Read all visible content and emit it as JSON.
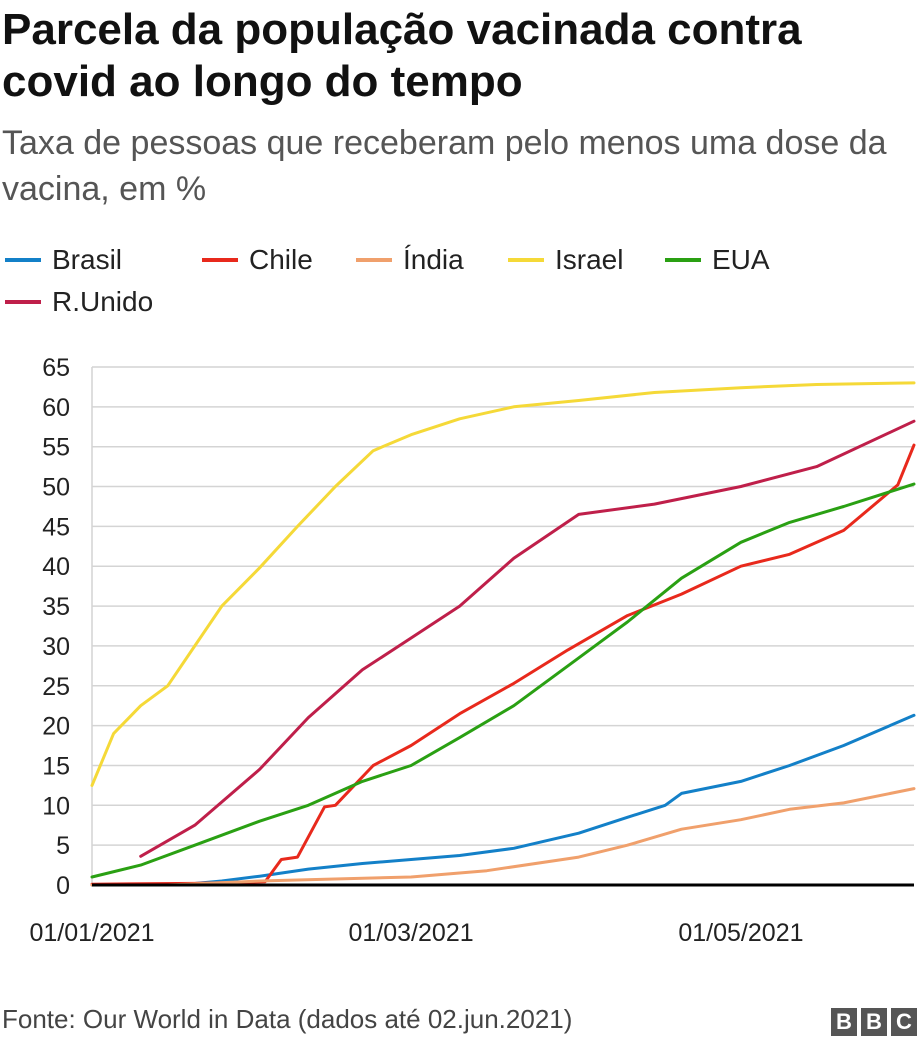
{
  "title": "Parcela da população vacinada contra covid ao longo do tempo",
  "subtitle": "Taxa de pessoas que receberam pelo menos uma dose da vacina, em %",
  "source": "Fonte: Our World in Data (dados até 02.jun.2021)",
  "logo": [
    "B",
    "B",
    "C"
  ],
  "chart_data": {
    "type": "line",
    "x_type": "date",
    "xlim": [
      "2021-01-01",
      "2021-06-02"
    ],
    "x_ticks": [
      "2021-01-01",
      "2021-03-01",
      "2021-05-01"
    ],
    "x_tick_labels": [
      "01/01/2021",
      "01/03/2021",
      "01/05/2021"
    ],
    "ylim": [
      0,
      65
    ],
    "y_ticks": [
      0,
      5,
      10,
      15,
      20,
      25,
      30,
      35,
      40,
      45,
      50,
      55,
      60,
      65
    ],
    "grid": true,
    "legend_position": "top",
    "series": [
      {
        "name": "Brasil",
        "color": "#1380c8",
        "points": [
          [
            "2021-01-01",
            0
          ],
          [
            "2021-01-17",
            0
          ],
          [
            "2021-01-25",
            0.5
          ],
          [
            "2021-02-01",
            1.1
          ],
          [
            "2021-02-10",
            2.0
          ],
          [
            "2021-02-20",
            2.7
          ],
          [
            "2021-03-01",
            3.2
          ],
          [
            "2021-03-10",
            3.7
          ],
          [
            "2021-03-20",
            4.6
          ],
          [
            "2021-04-01",
            6.5
          ],
          [
            "2021-04-10",
            8.5
          ],
          [
            "2021-04-17",
            10.0
          ],
          [
            "2021-04-20",
            11.5
          ],
          [
            "2021-05-01",
            13.0
          ],
          [
            "2021-05-10",
            15.0
          ],
          [
            "2021-05-20",
            17.5
          ],
          [
            "2021-06-02",
            21.3
          ]
        ]
      },
      {
        "name": "Chile",
        "color": "#e8291c",
        "points": [
          [
            "2021-01-01",
            0.1
          ],
          [
            "2021-01-20",
            0.2
          ],
          [
            "2021-02-02",
            0.4
          ],
          [
            "2021-02-05",
            3.2
          ],
          [
            "2021-02-08",
            3.5
          ],
          [
            "2021-02-13",
            9.8
          ],
          [
            "2021-02-15",
            10.0
          ],
          [
            "2021-02-22",
            15.0
          ],
          [
            "2021-03-01",
            17.5
          ],
          [
            "2021-03-10",
            21.5
          ],
          [
            "2021-03-20",
            25.3
          ],
          [
            "2021-03-30",
            29.5
          ],
          [
            "2021-04-10",
            33.8
          ],
          [
            "2021-04-20",
            36.5
          ],
          [
            "2021-05-01",
            40.0
          ],
          [
            "2021-05-10",
            41.5
          ],
          [
            "2021-05-20",
            44.5
          ],
          [
            "2021-05-30",
            50.2
          ],
          [
            "2021-06-02",
            55.2
          ]
        ]
      },
      {
        "name": "Índia",
        "color": "#f0a06c",
        "points": [
          [
            "2021-01-01",
            0
          ],
          [
            "2021-01-15",
            0
          ],
          [
            "2021-02-01",
            0.5
          ],
          [
            "2021-03-01",
            1.0
          ],
          [
            "2021-03-15",
            1.8
          ],
          [
            "2021-04-01",
            3.5
          ],
          [
            "2021-04-10",
            5.0
          ],
          [
            "2021-04-20",
            7.0
          ],
          [
            "2021-05-01",
            8.2
          ],
          [
            "2021-05-10",
            9.5
          ],
          [
            "2021-05-20",
            10.3
          ],
          [
            "2021-06-02",
            12.1
          ]
        ]
      },
      {
        "name": "Israel",
        "color": "#f5d938",
        "points": [
          [
            "2021-01-01",
            12.5
          ],
          [
            "2021-01-05",
            19.0
          ],
          [
            "2021-01-10",
            22.5
          ],
          [
            "2021-01-15",
            25.0
          ],
          [
            "2021-01-20",
            30.0
          ],
          [
            "2021-01-25",
            35.0
          ],
          [
            "2021-02-01",
            39.8
          ],
          [
            "2021-02-08",
            45.0
          ],
          [
            "2021-02-15",
            50.0
          ],
          [
            "2021-02-22",
            54.5
          ],
          [
            "2021-03-01",
            56.5
          ],
          [
            "2021-03-10",
            58.5
          ],
          [
            "2021-03-20",
            60.0
          ],
          [
            "2021-04-01",
            60.8
          ],
          [
            "2021-04-15",
            61.8
          ],
          [
            "2021-05-01",
            62.4
          ],
          [
            "2021-05-15",
            62.8
          ],
          [
            "2021-06-02",
            63.0
          ]
        ]
      },
      {
        "name": "EUA",
        "color": "#2aa013",
        "points": [
          [
            "2021-01-01",
            1.0
          ],
          [
            "2021-01-10",
            2.5
          ],
          [
            "2021-01-20",
            5.0
          ],
          [
            "2021-02-01",
            8.0
          ],
          [
            "2021-02-10",
            10.0
          ],
          [
            "2021-02-20",
            13.0
          ],
          [
            "2021-03-01",
            15.0
          ],
          [
            "2021-03-10",
            18.5
          ],
          [
            "2021-03-20",
            22.5
          ],
          [
            "2021-04-01",
            28.5
          ],
          [
            "2021-04-10",
            33.0
          ],
          [
            "2021-04-20",
            38.5
          ],
          [
            "2021-05-01",
            43.0
          ],
          [
            "2021-05-10",
            45.5
          ],
          [
            "2021-05-20",
            47.5
          ],
          [
            "2021-06-02",
            50.3
          ]
        ]
      },
      {
        "name": "R.Unido",
        "color": "#bf1f4a",
        "points": [
          [
            "2021-01-10",
            3.6
          ],
          [
            "2021-01-20",
            7.5
          ],
          [
            "2021-02-01",
            14.5
          ],
          [
            "2021-02-10",
            21.0
          ],
          [
            "2021-02-20",
            27.0
          ],
          [
            "2021-03-01",
            31.0
          ],
          [
            "2021-03-10",
            35.0
          ],
          [
            "2021-03-20",
            41.0
          ],
          [
            "2021-04-01",
            46.5
          ],
          [
            "2021-04-15",
            47.8
          ],
          [
            "2021-05-01",
            50.0
          ],
          [
            "2021-05-15",
            52.5
          ],
          [
            "2021-06-02",
            58.2
          ]
        ]
      }
    ]
  }
}
